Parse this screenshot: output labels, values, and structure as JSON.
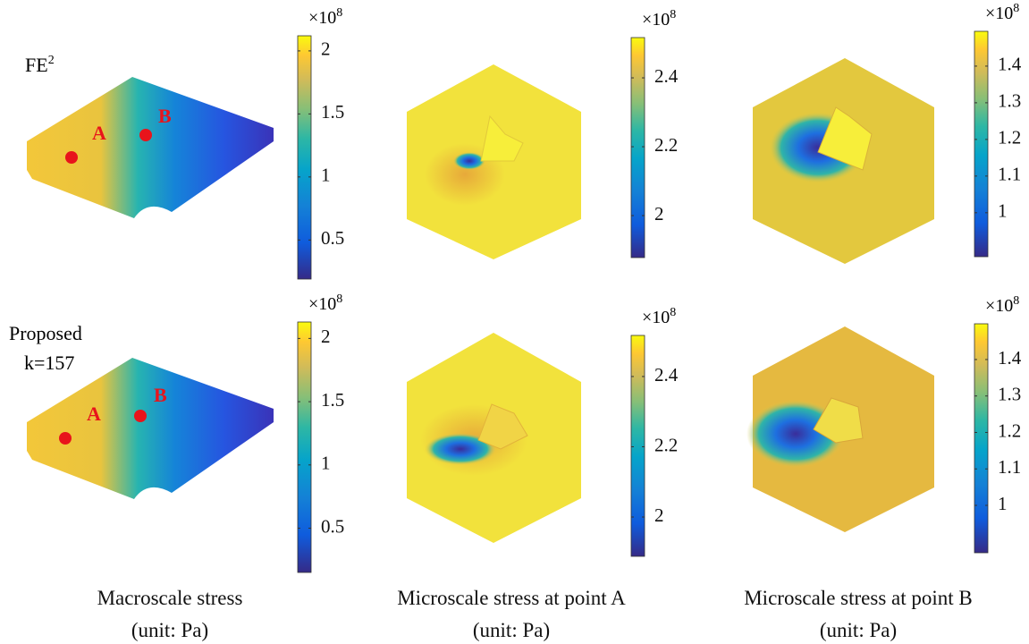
{
  "rows": [
    {
      "label": {
        "text": "FE",
        "sup": "2"
      },
      "points": [
        "A",
        "B"
      ],
      "colorbars": [
        {
          "exponent": {
            "base": "×10",
            "power": "8"
          },
          "lim": [
            0.19,
            2.12
          ],
          "ticks": [
            0.5,
            1,
            1.5,
            2
          ]
        },
        {
          "exponent": {
            "base": "×10",
            "power": "8"
          },
          "lim": [
            1.878,
            2.517
          ],
          "ticks": [
            2,
            2.2,
            2.4
          ]
        },
        {
          "exponent": {
            "base": "×10",
            "power": "8"
          },
          "lim": [
            0.88,
            1.495
          ],
          "ticks": [
            1,
            1.1,
            1.2,
            1.3,
            1.4
          ]
        }
      ]
    },
    {
      "label": {
        "lines": [
          "Proposed",
          "k=157"
        ]
      },
      "points": [
        "A",
        "B"
      ],
      "colorbars": [
        {
          "exponent": {
            "base": "×10",
            "power": "8"
          },
          "lim": [
            0.15,
            2.13
          ],
          "ticks": [
            0.5,
            1,
            1.5,
            2
          ]
        },
        {
          "exponent": {
            "base": "×10",
            "power": "8"
          },
          "lim": [
            1.888,
            2.517
          ],
          "ticks": [
            2,
            2.2,
            2.4
          ]
        },
        {
          "exponent": {
            "base": "×10",
            "power": "8"
          },
          "lim": [
            0.87,
            1.498
          ],
          "ticks": [
            1,
            1.1,
            1.2,
            1.3,
            1.4
          ]
        }
      ]
    }
  ],
  "captions": [
    [
      "Macroscale stress",
      "(unit: Pa)"
    ],
    [
      "Microscale stress at point A",
      "(unit: Pa)"
    ],
    [
      "Microscale stress at point B",
      "(unit: Pa)"
    ]
  ]
}
